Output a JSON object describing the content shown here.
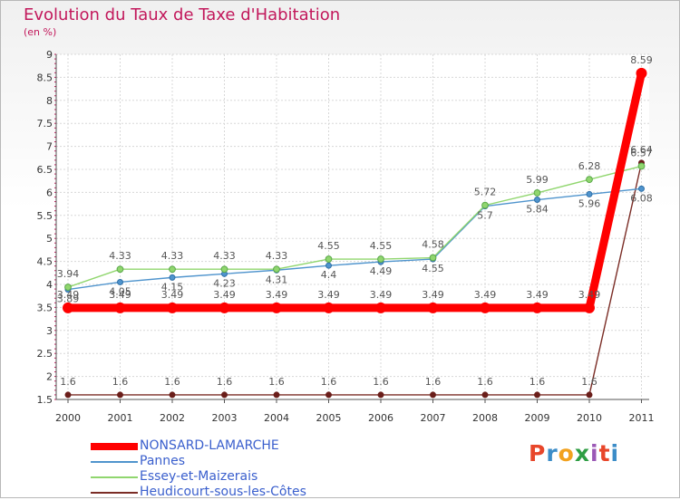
{
  "header": {
    "title": "Evolution du Taux de Taxe d'Habitation",
    "subtitle": "(en %)"
  },
  "brand": {
    "logo_text": "Proxiti",
    "colors": [
      "#e8462a",
      "#3c8dc8",
      "#f2a21f",
      "#2f9e44",
      "#9b59b6",
      "#e8462a",
      "#3c8dc8"
    ]
  },
  "chart_data": {
    "type": "line",
    "x": [
      "2000",
      "2001",
      "2002",
      "2003",
      "2004",
      "2005",
      "2006",
      "2007",
      "2008",
      "2009",
      "2010",
      "2011"
    ],
    "ylim": [
      1.5,
      9
    ],
    "yticks": [
      "1.5",
      "2",
      "2.5",
      "3",
      "3.5",
      "4",
      "4.5",
      "5",
      "5.5",
      "6",
      "6.5",
      "7",
      "7.5",
      "8",
      "8.5",
      "9"
    ],
    "grid": true,
    "legend_position": "bottom-left",
    "series": [
      {
        "name": "NONSARD-LAMARCHE",
        "color": "#ff0000",
        "values": [
          3.49,
          3.49,
          3.49,
          3.49,
          3.49,
          3.49,
          3.49,
          3.49,
          3.49,
          3.49,
          3.49,
          8.59
        ],
        "labels": [
          "3.49",
          "3.49",
          "3.49",
          "3.49",
          "3.49",
          "3.49",
          "3.49",
          "3.49",
          "3.49",
          "3.49",
          "3.49",
          "8.59"
        ]
      },
      {
        "name": "Pannes",
        "color": "#4f94cd",
        "values": [
          3.89,
          4.05,
          4.15,
          4.23,
          4.31,
          4.41,
          4.49,
          4.55,
          5.7,
          5.84,
          5.96,
          6.08
        ],
        "labels": [
          "3.89",
          "4.05",
          "4.15",
          "4.23",
          "4.31",
          "4.4",
          "4.49",
          "4.55",
          "5.7",
          "5.84",
          "5.96",
          "6.08"
        ]
      },
      {
        "name": "Essey-et-Maizerais",
        "color": "#90d66e",
        "values": [
          3.94,
          4.33,
          4.33,
          4.33,
          4.33,
          4.55,
          4.55,
          4.58,
          5.72,
          5.99,
          6.28,
          6.57
        ],
        "labels": [
          "3.94",
          "4.33",
          "4.33",
          "4.33",
          "4.33",
          "4.55",
          "4.55",
          "4.58",
          "5.72",
          "5.99",
          "6.28",
          "6.57"
        ]
      },
      {
        "name": "Heudicourt-sous-les-Côtes",
        "color": "#7b2d26",
        "values": [
          1.6,
          1.6,
          1.6,
          1.6,
          1.6,
          1.6,
          1.6,
          1.6,
          1.6,
          1.6,
          1.6,
          6.64
        ],
        "labels": [
          "1.6",
          "1.6",
          "1.6",
          "1.6",
          "1.6",
          "1.6",
          "1.6",
          "1.6",
          "1.6",
          "1.6",
          "1.6",
          "6.64"
        ]
      }
    ]
  }
}
